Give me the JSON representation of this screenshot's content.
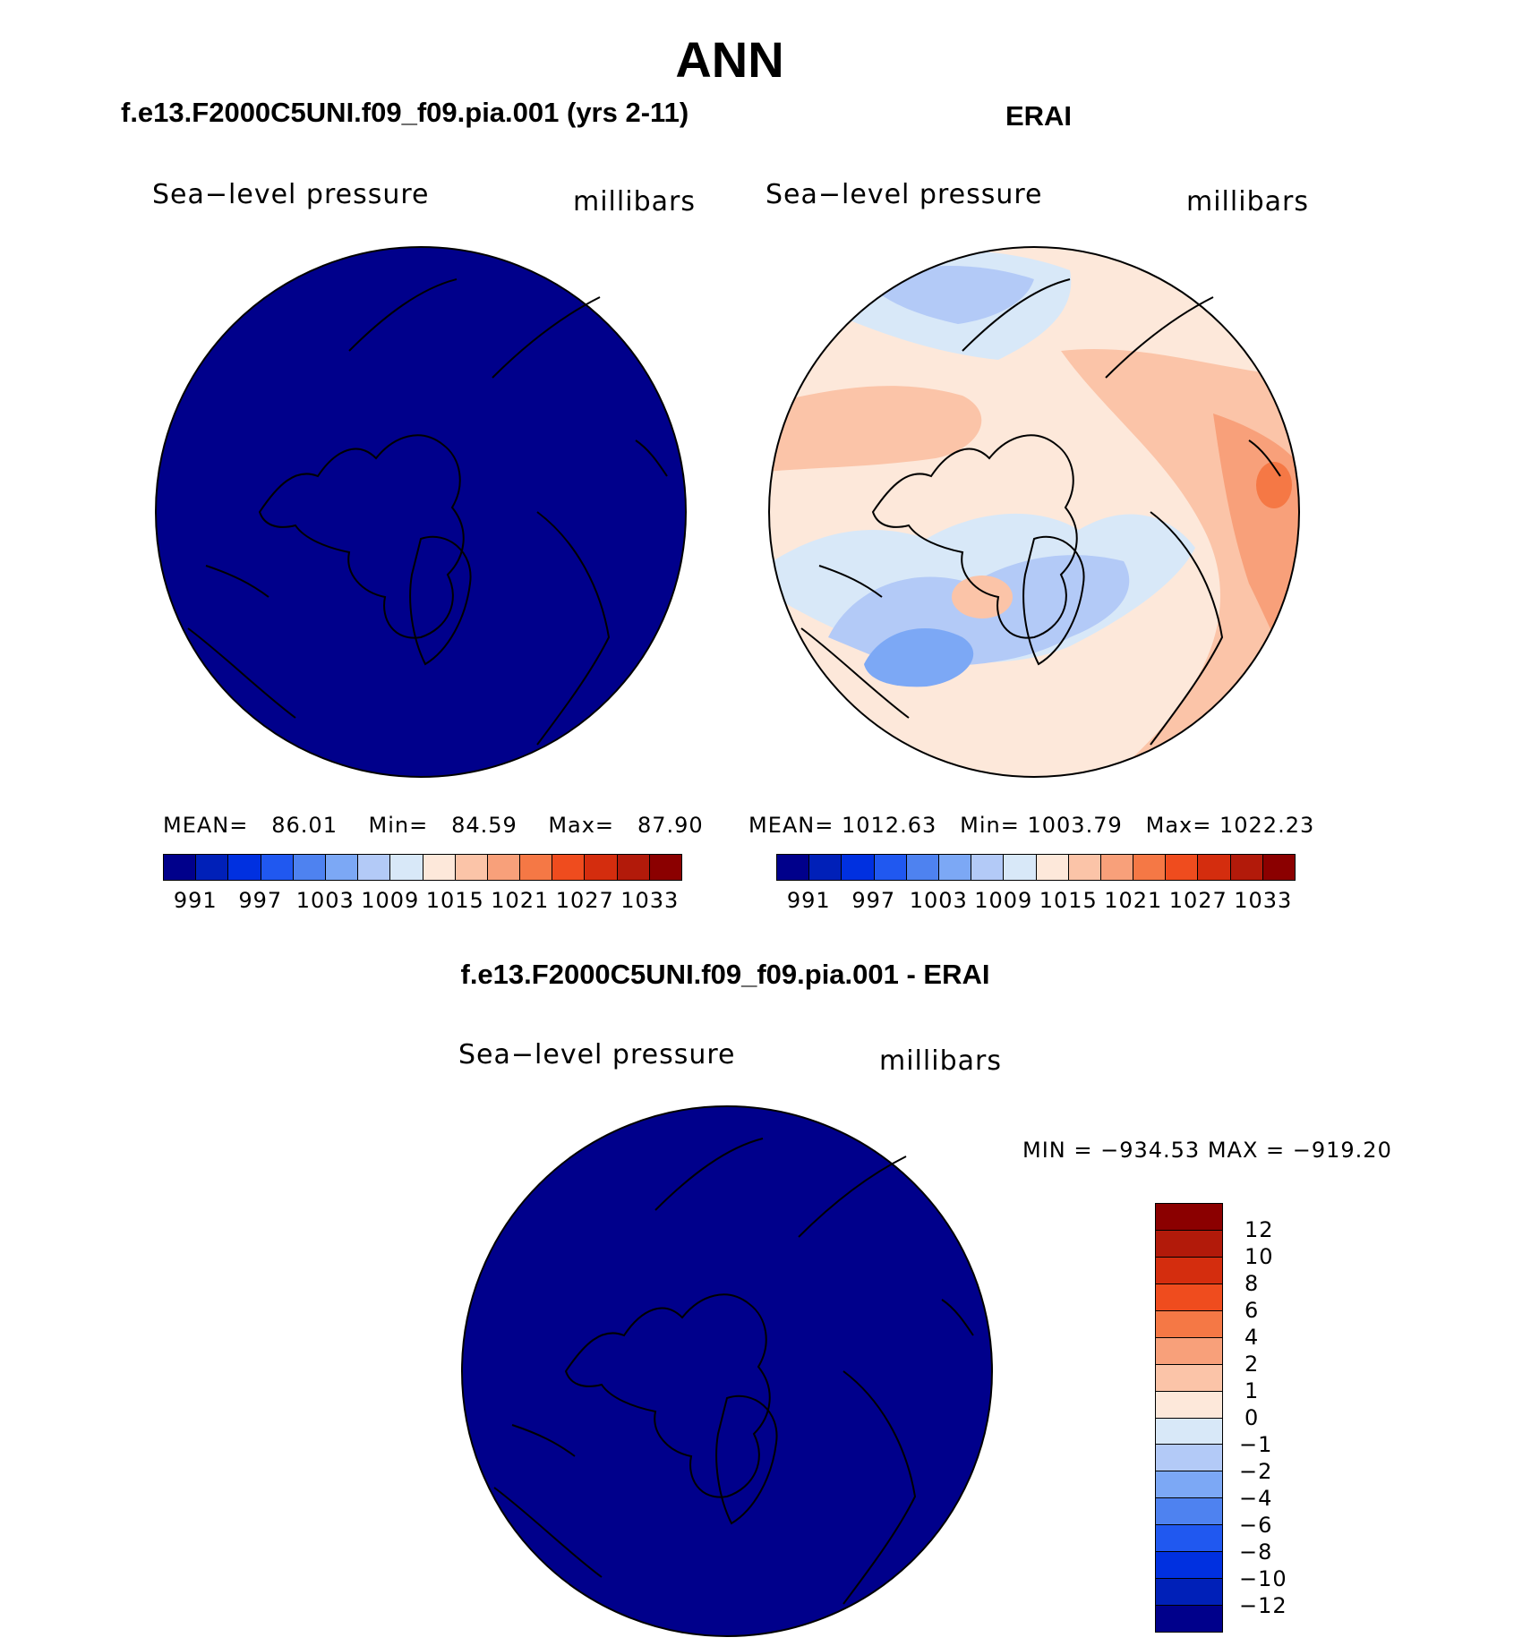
{
  "title": "ANN",
  "panels": {
    "model": {
      "title": "f.e13.F2000C5UNI.f09_f09.pia.001 (yrs 2-11)",
      "variable": "Sea−level pressure",
      "units": "millibars",
      "stats": {
        "mean_label": "MEAN=",
        "mean": "86.01",
        "min_label": "Min=",
        "min": "84.59",
        "max_label": "Max=",
        "max": "87.90"
      },
      "field_color": "#00008b"
    },
    "obs": {
      "title": "ERAI",
      "variable": "Sea−level pressure",
      "units": "millibars",
      "stats": {
        "mean_label": "MEAN=",
        "mean": "1012.63",
        "min_label": "Min=",
        "min": "1003.79",
        "max_label": "Max=",
        "max": "1022.23"
      }
    },
    "diff": {
      "title": "f.e13.F2000C5UNI.f09_f09.pia.001 - ERAI",
      "variable": "Sea−level pressure",
      "units": "millibars",
      "minmax": "MIN = −934.53 MAX = −919.20",
      "field_color": "#00008b"
    }
  },
  "colorbar_main": {
    "colors": [
      "#00008b",
      "#0020b8",
      "#0030e0",
      "#2058f0",
      "#4e82f0",
      "#7ca8f5",
      "#b3caf7",
      "#d8e8f8",
      "#fde8da",
      "#fbc4a8",
      "#f8a07a",
      "#f57845",
      "#ef4c1e",
      "#d42d0e",
      "#b21a0a",
      "#8b0000"
    ],
    "labels": [
      "991",
      "997",
      "1003",
      "1009",
      "1015",
      "1021",
      "1027",
      "1033"
    ]
  },
  "colorbar_diff": {
    "colors": [
      "#8b0000",
      "#b21a0a",
      "#d42d0e",
      "#ef4c1e",
      "#f57845",
      "#f8a07a",
      "#fbc4a8",
      "#fde8da",
      "#d8e8f8",
      "#b3caf7",
      "#7ca8f5",
      "#4e82f0",
      "#2058f0",
      "#0030e0",
      "#0020b8",
      "#00008b"
    ],
    "labels": [
      "12",
      "10",
      "8",
      "6",
      "4",
      "2",
      "1",
      "0",
      "−1",
      "−2",
      "−4",
      "−6",
      "−8",
      "−10",
      "−12"
    ]
  }
}
